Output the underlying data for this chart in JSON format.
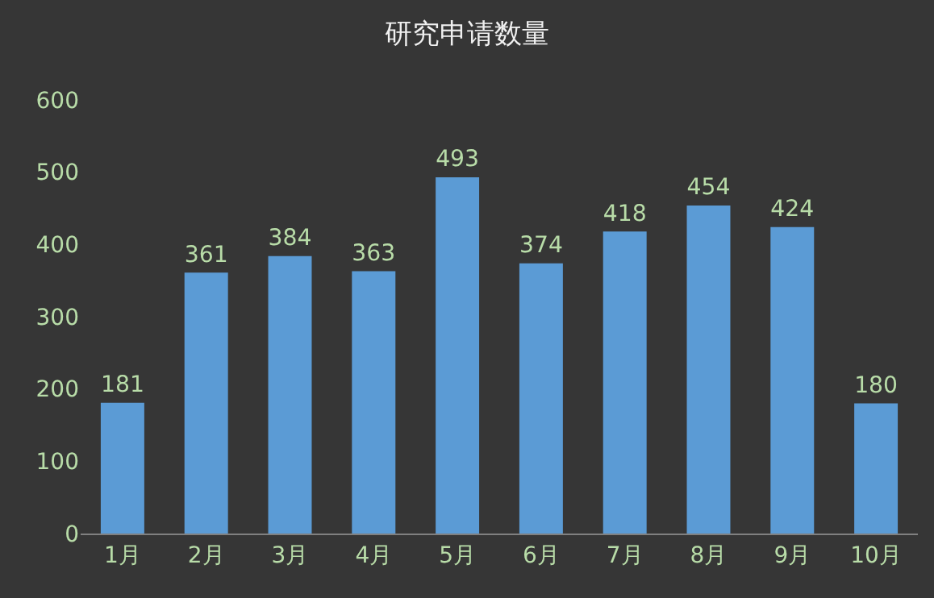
{
  "chart_data": {
    "type": "bar",
    "title": "研究申请数量",
    "categories": [
      "1月",
      "2月",
      "3月",
      "4月",
      "5月",
      "6月",
      "7月",
      "8月",
      "9月",
      "10月"
    ],
    "values": [
      181,
      361,
      384,
      363,
      493,
      374,
      418,
      454,
      424,
      180
    ],
    "color": "#5b9bd5",
    "ylim": [
      0,
      600
    ],
    "yticks": [
      0,
      100,
      200,
      300,
      400,
      500,
      600
    ],
    "grid": false,
    "data_labels": true
  }
}
